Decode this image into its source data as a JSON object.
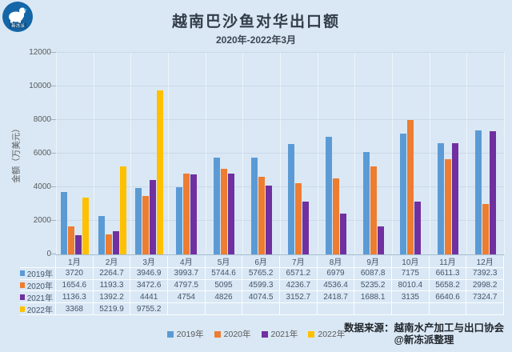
{
  "logo": {
    "brand": "新冻派"
  },
  "header": {
    "title": "越南巴沙鱼对华出口额",
    "subtitle": "2020年-2022年3月"
  },
  "chart_data": {
    "type": "bar",
    "title": "越南巴沙鱼对华出口额",
    "subtitle": "2020年-2022年3月",
    "ylabel": "金额（万美元）",
    "xlabel": "",
    "ylim": [
      0,
      12000
    ],
    "ytick_step": 2000,
    "grid": true,
    "legend_position": "bottom",
    "categories": [
      "1月",
      "2月",
      "3月",
      "4月",
      "5月",
      "6月",
      "7月",
      "8月",
      "9月",
      "10月",
      "11月",
      "12月"
    ],
    "series": [
      {
        "name": "2019年",
        "color": "#5B9BD5",
        "values": [
          3720,
          2264.7,
          3946.9,
          3993.7,
          5744.6,
          5765.2,
          6571.2,
          6979,
          6087.8,
          7175,
          6611.3,
          7392.3
        ]
      },
      {
        "name": "2020年",
        "color": "#ED7D31",
        "values": [
          1654.6,
          1193.3,
          3472.6,
          4797.5,
          5095,
          4599.3,
          4236.7,
          4536.4,
          5235.2,
          8010.4,
          5658.2,
          2998.2
        ]
      },
      {
        "name": "2021年",
        "color": "#7030A0",
        "values": [
          1136.3,
          1392.2,
          4441,
          4754,
          4826,
          4074.5,
          3152.7,
          2418.7,
          1688.1,
          3135,
          6640.6,
          7324.7
        ]
      },
      {
        "name": "2022年",
        "color": "#FFC000",
        "values": [
          3368,
          5219.9,
          9755.2,
          null,
          null,
          null,
          null,
          null,
          null,
          null,
          null,
          null
        ]
      }
    ]
  },
  "footer": {
    "source_label": "数据来源：越南水产加工与出口协会",
    "credit": "@新冻派整理"
  },
  "colors": {
    "background": "#dae8f5",
    "logo_blue": "#1566a7",
    "logo_dark_blue": "#0d4f85",
    "logo_accent": "#3cb9e8",
    "axis_text": "#595959",
    "table_text": "#44546A",
    "title_text": "#323d49",
    "source_text": "#21262c"
  }
}
